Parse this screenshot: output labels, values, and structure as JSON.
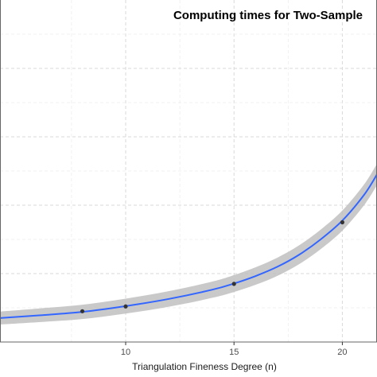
{
  "chart_data": {
    "type": "line",
    "title": "Computing times for Two-Sample",
    "xlabel": "Triangulation Fineness Degree (n)",
    "ylabel": "",
    "xlim": [
      4.2,
      21.6
    ],
    "ylim": [
      0,
      100
    ],
    "x_ticks": [
      10,
      15,
      20
    ],
    "grid": true,
    "points": [
      {
        "x": 8,
        "y": 9.0
      },
      {
        "x": 10,
        "y": 10.4
      },
      {
        "x": 15,
        "y": 17.0
      },
      {
        "x": 20,
        "y": 35.0
      }
    ],
    "fit": {
      "x": [
        4.2,
        6,
        8,
        10,
        12,
        14,
        15,
        16,
        17,
        18,
        19,
        20,
        21,
        21.6
      ],
      "y": [
        7.0,
        7.8,
        8.8,
        10.5,
        12.6,
        15.3,
        17.1,
        19.3,
        22.0,
        25.5,
        30.0,
        35.5,
        43.0,
        49.0
      ],
      "band": 1.9
    },
    "colors": {
      "line": "#3366ff",
      "band": "#bfbfbf",
      "point": "#333333",
      "panel_border": "#666666"
    }
  }
}
